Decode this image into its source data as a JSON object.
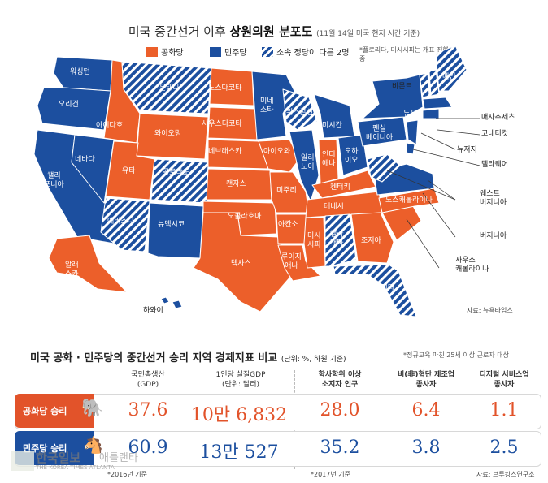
{
  "title": {
    "prefix": "미국 중간선거 이후",
    "highlight": "상원의원 분포도",
    "note": "(11월 14일 미국 현지 시간 기준)"
  },
  "legend": {
    "republican": "공화당",
    "democrat": "민주당",
    "mixed": "소속 정당이 다른 2명",
    "florida_note": "*플로리다, 미시시피는 개표 진행 중"
  },
  "colors": {
    "republican": "#ec5f2a",
    "democrat": "#1c4f9f",
    "mixed": "#1c4f9f hatched"
  },
  "states": {
    "wa": "워싱턴",
    "or": "오리건",
    "ca": "캘리\n포니아",
    "nv": "네바다",
    "id": "아이다호",
    "mt": "몬태나",
    "wy": "와이오밍",
    "ut": "유타",
    "az": "애리조나",
    "co": "콜로라도",
    "nm": "뉴멕시코",
    "nd": "노스다코타",
    "sd": "사우스다코타",
    "ne": "네브래스카",
    "ks": "캔자스",
    "ok": "오클라호마",
    "tx": "텍사스",
    "mn": "미네\n소타",
    "ia": "아이오와",
    "mo": "미주리",
    "ar": "아칸소",
    "la": "루이지\n애나",
    "wi": "위스콘신",
    "il": "일리\n노이",
    "mi": "미시간",
    "in": "인디\n애나",
    "oh": "오하\n이오",
    "ky": "켄터키",
    "tn": "테네시",
    "ms": "미시\n시피",
    "al": "앨라\n배마",
    "ga": "조지아",
    "fl": "플로리다",
    "nc": "노스캐롤라이나",
    "pa": "펜실\n베이니아",
    "ny": "뉴욕",
    "me": "메인",
    "ak": "알래\n스카",
    "hi": "하와이",
    "vt": "비몬트",
    "ma": "매사추세츠",
    "ct": "코네티컷",
    "nj": "뉴저지",
    "de": "델라웨어",
    "wv": "웨스트\n버지니아",
    "va": "버지니아",
    "sc": "사우스\n캐롤라이나"
  },
  "map_source": "자료: 뉴욕타임스",
  "bottom": {
    "title": "미국 공화 · 민주당의 중간선거 승리 지역 경제지표 비교",
    "unit": "(단위: %, 하원 기준)",
    "note": "*정규교육 마친 25세 이상 근로자 대상",
    "columns": [
      {
        "label": "국민총생산\n(GDP)"
      },
      {
        "label": "1인당 실질GDP\n(단위: 달러)"
      },
      {
        "label": "학사학위 이상\n소지자 인구"
      },
      {
        "label": "비(非)혁단 제조업\n종사자"
      },
      {
        "label": "디지털 서비스업\n종사자"
      }
    ],
    "rows": [
      {
        "party": "공화당 승리",
        "values": [
          "37.6",
          "10만 6,832",
          "28.0",
          "6.4",
          "1.1"
        ]
      },
      {
        "party": "민주당 승리",
        "values": [
          "60.9",
          "13만 527",
          "35.2",
          "3.8",
          "2.5"
        ]
      }
    ],
    "foot1": "*2016년 기준",
    "foot2": "*2017년 기준",
    "source": "자료: 브루킹스연구소"
  },
  "watermark": {
    "name": "한국일보",
    "sub": "THE KOREA TIMES ATLANTA",
    "overlay": "애틀랜타"
  }
}
